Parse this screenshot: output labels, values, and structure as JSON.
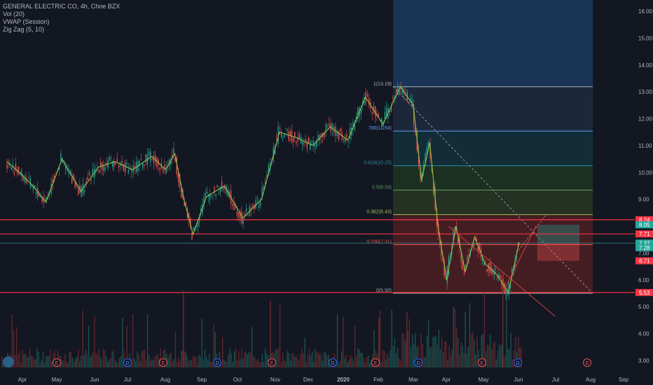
{
  "legend": {
    "title": "GENERAL ELECTRIC CO, 4h, Choe BZX",
    "indicators": [
      "Vol (20)",
      "VWAP (Session)",
      "Zig Zag (5, 10)"
    ]
  },
  "colors": {
    "background": "#131722",
    "up": "#26a69a",
    "down": "#ef5350",
    "zigzag": "#8bc34a",
    "hline": "#f23645",
    "vwap": "#5b9cf6",
    "axis_text": "#b2b5be"
  },
  "chart_data": {
    "type": "candlestick",
    "title": "GENERAL ELECTRIC CO, 4h, Choe BZX",
    "ylim": [
      2.8,
      16.4
    ],
    "yticks": [
      "16.00",
      "15.00",
      "14.00",
      "13.00",
      "12.00",
      "11.00",
      "10.00",
      "9.00",
      "8.00",
      "7.00",
      "6.00",
      "5.00",
      "4.00",
      "3.00"
    ],
    "xticks": [
      "Apr",
      "May",
      "Jun",
      "Jul",
      "Aug",
      "Sep",
      "Oct",
      "Nov",
      "Dec",
      "2020",
      "Feb",
      "Mar",
      "Apr",
      "May",
      "Jun",
      "Jul",
      "Aug",
      "Sep"
    ],
    "price_path": [
      [
        "Apr",
        10.4
      ],
      [
        "Apr",
        10.0
      ],
      [
        "Apr",
        9.5
      ],
      [
        "Apr",
        8.9
      ],
      [
        "May",
        10.5
      ],
      [
        "May",
        9.3
      ],
      [
        "Jun",
        10.2
      ],
      [
        "Jun",
        10.4
      ],
      [
        "Jul",
        10.1
      ],
      [
        "Jul",
        10.6
      ],
      [
        "Aug",
        10.1
      ],
      [
        "Aug",
        10.7
      ],
      [
        "Aug",
        9.0
      ],
      [
        "Aug",
        7.7
      ],
      [
        "Sep",
        9.1
      ],
      [
        "Sep",
        9.5
      ],
      [
        "Oct",
        8.3
      ],
      [
        "Oct",
        9.0
      ],
      [
        "Nov",
        11.5
      ],
      [
        "Nov",
        11.3
      ],
      [
        "Dec",
        11.0
      ],
      [
        "Dec",
        11.7
      ],
      [
        "2020",
        11.2
      ],
      [
        "2020",
        12.8
      ],
      [
        "Feb",
        11.8
      ],
      [
        "Feb",
        13.19
      ],
      [
        "Mar",
        12.5
      ],
      [
        "Mar",
        9.7
      ],
      [
        "Mar",
        11.1
      ],
      [
        "Mar",
        8.0
      ],
      [
        "Apr",
        6.0
      ],
      [
        "Apr",
        8.0
      ],
      [
        "Apr",
        6.3
      ],
      [
        "Apr",
        7.6
      ],
      [
        "May",
        6.6
      ],
      [
        "May",
        6.2
      ],
      [
        "May",
        5.53
      ],
      [
        "Jun",
        7.4
      ]
    ],
    "fibonacci": [
      {
        "level": "1",
        "price": 13.19,
        "label": "1(13.19)",
        "color": "#b2b5be",
        "fill": "#2a2e39"
      },
      {
        "level": "0.786",
        "price": 11.54,
        "label": "786(11.54)",
        "color": "#5b9cf6",
        "fill": "#1e2a3d"
      },
      {
        "level": "0.618",
        "price": 10.25,
        "label": "0.618(10.25)",
        "color": "#2f8fa5",
        "fill": "#13303a"
      },
      {
        "level": "0.5",
        "price": 9.34,
        "label": "0.5(9.34)",
        "color": "#5aa162",
        "fill": "#1e3322"
      },
      {
        "level": "0.382",
        "price": 8.43,
        "label": "0.382(8.43)",
        "color": "#a5bf4f",
        "fill": "#273424"
      },
      {
        "level": "0.236",
        "price": 7.31,
        "label": "0.236(7.31)",
        "color": "#ef5350",
        "fill": "#4a1e22"
      },
      {
        "level": "0",
        "price": 5.5,
        "label": "0(5.50)",
        "color": "#9e9e9e",
        "fill": "#4a1e22"
      }
    ],
    "horizontal_lines": [
      8.24,
      7.71,
      5.53
    ],
    "price_labels": [
      {
        "value": "8.24",
        "price": 8.24,
        "color": "#f23645"
      },
      {
        "value": "8.05",
        "price": 8.05,
        "color": "#26a69a"
      },
      {
        "value": "7.71",
        "price": 7.71,
        "color": "#f23645"
      },
      {
        "value": "7.37",
        "price": 7.37,
        "color": "#26a69a"
      },
      {
        "value": "7.28",
        "price": 7.2,
        "color": "#26a69a"
      },
      {
        "value": "6.71",
        "price": 6.71,
        "color": "#f23645"
      },
      {
        "value": "5.53",
        "price": 5.53,
        "color": "#f23645"
      }
    ],
    "events": [
      {
        "letter": "E",
        "month": "May"
      },
      {
        "letter": "D",
        "month": "Jul"
      },
      {
        "letter": "E",
        "month": "Aug"
      },
      {
        "letter": "D",
        "month": "Oct"
      },
      {
        "letter": "E",
        "month": "Nov"
      },
      {
        "letter": "D",
        "month": "2020"
      },
      {
        "letter": "E",
        "month": "Feb"
      },
      {
        "letter": "D",
        "month": "Mar"
      },
      {
        "letter": "E",
        "month": "May"
      },
      {
        "letter": "D",
        "month": "Jun"
      },
      {
        "letter": "E",
        "month": "Aug"
      }
    ]
  }
}
